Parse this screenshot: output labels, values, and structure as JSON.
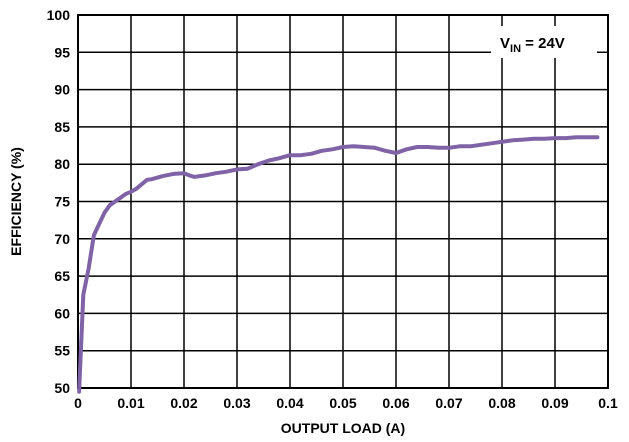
{
  "chart_data": {
    "type": "line",
    "title": "",
    "xlabel": "OUTPUT LOAD (A)",
    "ylabel": "EFFICIENCY (%)",
    "xlim": [
      0,
      0.1
    ],
    "ylim": [
      50,
      100
    ],
    "x_ticks": [
      "0",
      "0.01",
      "0.02",
      "0.03",
      "0.04",
      "0.05",
      "0.06",
      "0.07",
      "0.08",
      "0.09",
      "0.1"
    ],
    "y_ticks": [
      "50",
      "55",
      "60",
      "65",
      "70",
      "75",
      "80",
      "85",
      "90",
      "95",
      "100"
    ],
    "grid": true,
    "annotation": {
      "prefix": "V",
      "subscript": "IN",
      "suffix": " = 24V",
      "placement": "top-right"
    },
    "line_color": "#8063a6",
    "series": [
      {
        "x": [
          0.0002,
          0.001,
          0.002,
          0.003,
          0.004,
          0.005,
          0.006,
          0.007,
          0.008,
          0.009,
          0.01,
          0.011,
          0.012,
          0.013,
          0.014,
          0.015,
          0.016,
          0.018,
          0.02,
          0.021,
          0.022,
          0.024,
          0.026,
          0.028,
          0.03,
          0.032,
          0.034,
          0.036,
          0.038,
          0.04,
          0.042,
          0.044,
          0.046,
          0.048,
          0.05,
          0.052,
          0.054,
          0.056,
          0.058,
          0.06,
          0.062,
          0.064,
          0.066,
          0.068,
          0.07,
          0.072,
          0.074,
          0.076,
          0.078,
          0.08,
          0.082,
          0.084,
          0.086,
          0.088,
          0.09,
          0.092,
          0.094,
          0.096,
          0.098
        ],
        "values": [
          49.5,
          62.5,
          66.0,
          70.5,
          72.0,
          73.5,
          74.5,
          75.0,
          75.5,
          76.0,
          76.3,
          76.7,
          77.3,
          77.9,
          78.0,
          78.2,
          78.4,
          78.7,
          78.8,
          78.5,
          78.3,
          78.5,
          78.8,
          79.0,
          79.3,
          79.4,
          80.0,
          80.5,
          80.8,
          81.2,
          81.2,
          81.4,
          81.8,
          82.0,
          82.3,
          82.4,
          82.3,
          82.2,
          81.8,
          81.5,
          82.0,
          82.3,
          82.3,
          82.2,
          82.2,
          82.4,
          82.4,
          82.6,
          82.8,
          83.0,
          83.2,
          83.3,
          83.4,
          83.4,
          83.5,
          83.5,
          83.6,
          83.6,
          83.6
        ]
      }
    ]
  }
}
